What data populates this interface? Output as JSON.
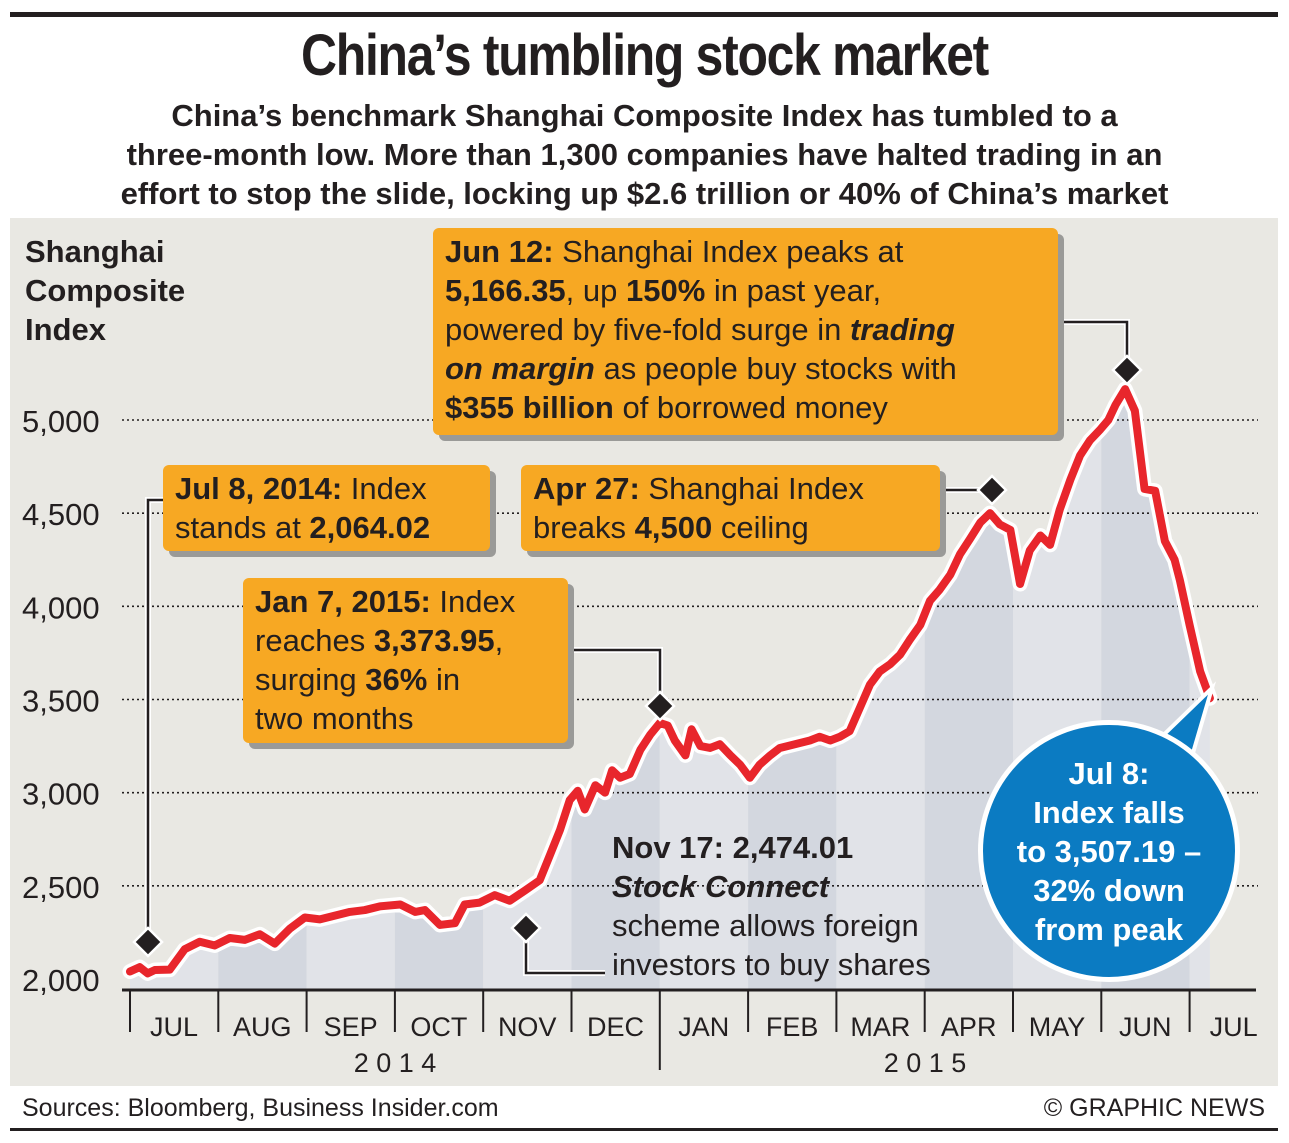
{
  "header": {
    "title": "China’s tumbling stock market",
    "subtitle_lines": [
      "China’s benchmark Shanghai Composite Index has tumbled to a",
      "three-month low. More than 1,300 companies have halted trading in an",
      "effort to stop the slide, locking up $2.6 trillion or 40% of China’s market"
    ]
  },
  "annotations": {
    "jun12": {
      "date": "Jun 12:",
      "t1": " Shanghai Index peaks at",
      "v1": "5,166.35",
      "t2": ", up ",
      "v2": "150%",
      "t3": " in past year,",
      "t4": "powered by five-fold surge in ",
      "em1": "trading",
      "em2": "on margin",
      "t5": " as people buy stocks with",
      "v3": "$355 billion",
      "t6": " of borrowed money"
    },
    "jul8_2014": {
      "date": "Jul 8, 2014:",
      "t1": " Index",
      "t2": "stands at ",
      "v1": "2,064.02"
    },
    "apr27": {
      "date": "Apr 27:",
      "t1": " Shanghai Index",
      "t2": "breaks ",
      "v1": "4,500",
      "t3": " ceiling"
    },
    "jan7": {
      "date": "Jan 7, 2015:",
      "t1": " Index",
      "t2": "reaches ",
      "v1": "3,373.95",
      "t3": ",",
      "t4": "surging ",
      "v2": "36%",
      "t5": " in",
      "t6": "two months"
    },
    "nov17": {
      "date": "Nov 17: 2,474.01",
      "em": "Stock Connect",
      "t1": "scheme allows foreign",
      "t2": "investors to buy shares"
    },
    "jul8_2015": {
      "l1": "Jul 8:",
      "l2": "Index falls",
      "l3": "to 3,507.19 –",
      "l4": "32% down",
      "l5": "from peak"
    }
  },
  "footer": {
    "sources": "Sources: Bloomberg, Business Insider.com",
    "credit": "© GRAPHIC NEWS"
  },
  "colors": {
    "line": "#e8262c",
    "box": "#f7a823",
    "bubble": "#0b7bc2",
    "panel": "#e9e8e3",
    "band_a": "#d3d7df",
    "band_b": "#e1e3e8"
  },
  "chart_data": {
    "type": "line",
    "title": "Shanghai Composite Index",
    "ylabel": "Shanghai Composite Index",
    "ylim": [
      2000,
      5000
    ],
    "yticks": [
      2000,
      2500,
      3000,
      3500,
      4000,
      4500,
      5000
    ],
    "ytick_labels": [
      "2,000",
      "2,500",
      "3,000",
      "3,500",
      "4,000",
      "4,500",
      "5,000"
    ],
    "month_labels": [
      "JUL",
      "AUG",
      "SEP",
      "OCT",
      "NOV",
      "DEC",
      "JAN",
      "FEB",
      "MAR",
      "APR",
      "MAY",
      "JUN",
      "JUL"
    ],
    "year_labels": [
      "2 0 1 4",
      "2 0 1 5"
    ],
    "x_unit": "months since Jul 1, 2014",
    "x": [
      0,
      0.11,
      0.2,
      0.28,
      0.45,
      0.62,
      0.79,
      0.96,
      1.13,
      1.3,
      1.47,
      1.64,
      1.81,
      1.98,
      2.15,
      2.32,
      2.49,
      2.66,
      2.83,
      3.06,
      3.23,
      3.34,
      3.51,
      3.68,
      3.79,
      3.96,
      4.13,
      4.3,
      4.47,
      4.64,
      4.76,
      4.87,
      4.98,
      5.07,
      5.15,
      5.27,
      5.38,
      5.46,
      5.55,
      5.66,
      5.78,
      5.89,
      6.0,
      6.09,
      6.17,
      6.29,
      6.36,
      6.46,
      6.57,
      6.68,
      6.8,
      6.91,
      7.02,
      7.13,
      7.25,
      7.36,
      7.53,
      7.7,
      7.81,
      7.93,
      8.04,
      8.15,
      8.27,
      8.38,
      8.49,
      8.61,
      8.72,
      8.83,
      8.95,
      9.06,
      9.17,
      9.29,
      9.4,
      9.51,
      9.63,
      9.74,
      9.85,
      9.97,
      10.08,
      10.19,
      10.31,
      10.42,
      10.53,
      10.65,
      10.76,
      10.87,
      10.99,
      11.08,
      11.16,
      11.27,
      11.38,
      11.49,
      11.61,
      11.72,
      11.83,
      11.89,
      12.0,
      12.12,
      12.23
    ],
    "y": [
      2040,
      2064,
      2030,
      2048,
      2050,
      2160,
      2200,
      2180,
      2220,
      2210,
      2240,
      2190,
      2270,
      2330,
      2320,
      2340,
      2360,
      2370,
      2390,
      2400,
      2360,
      2370,
      2290,
      2300,
      2400,
      2410,
      2450,
      2420,
      2474,
      2530,
      2670,
      2800,
      2960,
      3010,
      2910,
      3040,
      3000,
      3120,
      3080,
      3100,
      3230,
      3310,
      3374,
      3360,
      3280,
      3200,
      3340,
      3250,
      3240,
      3260,
      3200,
      3150,
      3080,
      3150,
      3200,
      3240,
      3260,
      3280,
      3300,
      3280,
      3300,
      3330,
      3460,
      3580,
      3650,
      3690,
      3740,
      3820,
      3900,
      4030,
      4090,
      4170,
      4280,
      4360,
      4450,
      4500,
      4440,
      4410,
      4120,
      4300,
      4380,
      4330,
      4520,
      4680,
      4810,
      4890,
      4950,
      5000,
      5080,
      5166,
      5050,
      4630,
      4620,
      4350,
      4250,
      4140,
      3900,
      3650,
      3507
    ]
  }
}
